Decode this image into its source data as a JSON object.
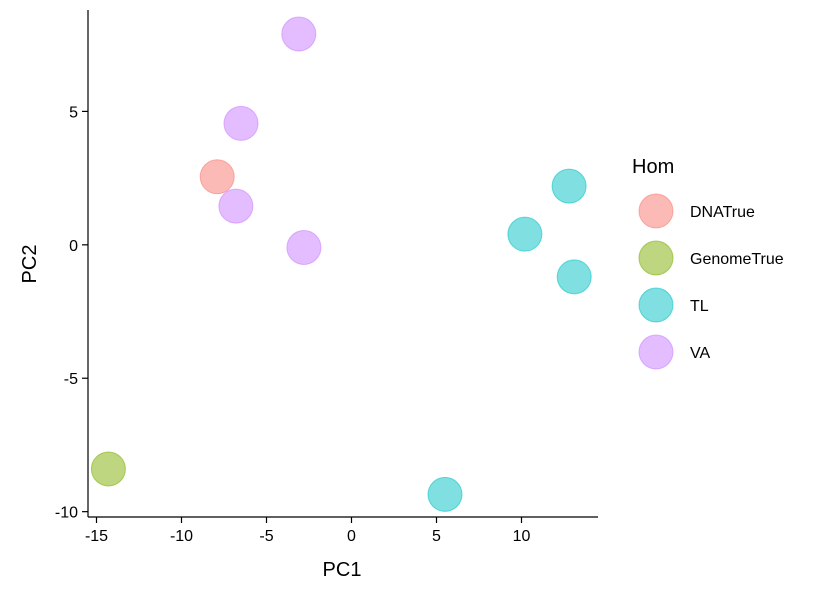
{
  "chart_data": {
    "type": "scatter",
    "title": "",
    "xlabel": "PC1",
    "ylabel": "PC2",
    "xlim": [
      -15.5,
      14.5
    ],
    "ylim": [
      -10.2,
      8.8
    ],
    "xticks": [
      -15,
      -10,
      -5,
      0,
      5,
      10
    ],
    "yticks": [
      -10,
      -5,
      0,
      5
    ],
    "grid": false,
    "legend": {
      "title": "Hom",
      "position": "right"
    },
    "series": [
      {
        "name": "DNATrue",
        "color": "#F8766D",
        "points": [
          {
            "x": -7.9,
            "y": 2.55
          }
        ]
      },
      {
        "name": "GenomeTrue",
        "color": "#7CAE00",
        "points": [
          {
            "x": -14.3,
            "y": -8.4
          }
        ]
      },
      {
        "name": "TL",
        "color": "#00BFC4",
        "points": [
          {
            "x": 12.8,
            "y": 2.2
          },
          {
            "x": 10.2,
            "y": 0.4
          },
          {
            "x": 13.1,
            "y": -1.2
          },
          {
            "x": 5.5,
            "y": -9.35
          }
        ]
      },
      {
        "name": "VA",
        "color": "#C77CFF",
        "points": [
          {
            "x": -3.1,
            "y": 7.9
          },
          {
            "x": -6.5,
            "y": 4.55
          },
          {
            "x": -6.8,
            "y": 1.45
          },
          {
            "x": -2.8,
            "y": -0.1
          }
        ]
      }
    ]
  }
}
